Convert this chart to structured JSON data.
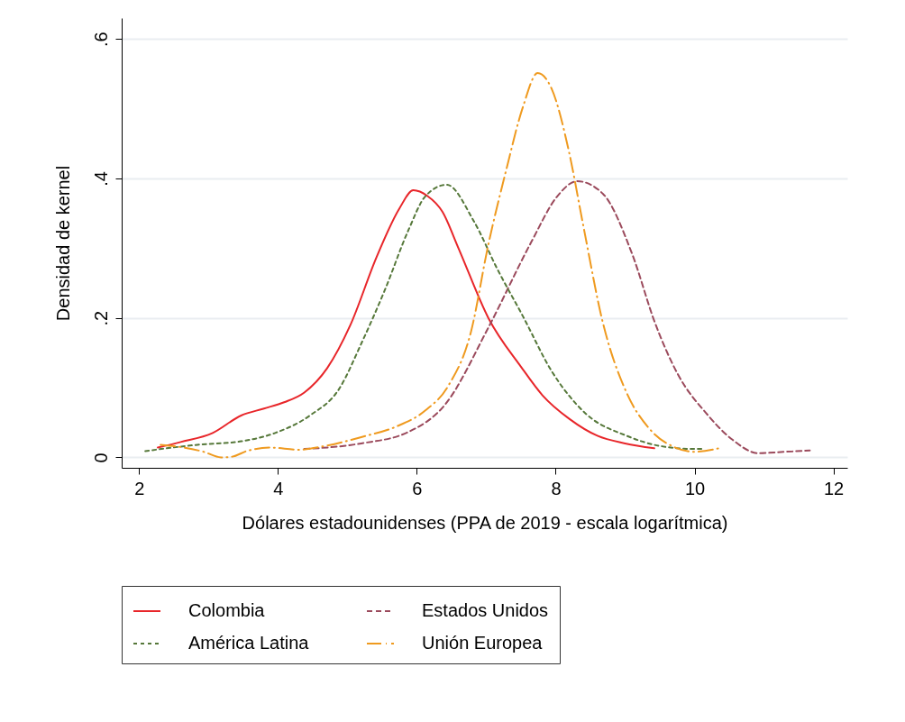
{
  "chart_data": {
    "type": "line",
    "xlabel": "Dólares estadounidenses (PPA de 2019 - escala logarítmica)",
    "ylabel": "Densidad de kernel",
    "xlim": [
      1.75,
      12.2
    ],
    "xticks": [
      2,
      4,
      6,
      8,
      10,
      12
    ],
    "ylim": [
      -0.015,
      0.63
    ],
    "yticks": [
      {
        "value": 0,
        "label": "0"
      },
      {
        "value": 0.2,
        "label": ".2"
      },
      {
        "value": 0.4,
        "label": ".4"
      },
      {
        "value": 0.6,
        "label": ".6"
      }
    ],
    "grid": "y",
    "legend": "bottom",
    "marker": "none",
    "series": [
      {
        "name": "Colombia",
        "color": "#e8262a",
        "line_style": "solid",
        "x": [
          2.27,
          2.6,
          3.06,
          3.47,
          3.8,
          4.09,
          4.38,
          4.71,
          5.04,
          5.42,
          5.75,
          5.95,
          6.15,
          6.37,
          6.6,
          7.03,
          7.5,
          7.81,
          8.2,
          8.6,
          9.0,
          9.42
        ],
        "values": [
          0.014,
          0.022,
          0.035,
          0.06,
          0.07,
          0.079,
          0.093,
          0.128,
          0.189,
          0.287,
          0.357,
          0.383,
          0.375,
          0.352,
          0.3,
          0.2,
          0.13,
          0.089,
          0.055,
          0.031,
          0.02,
          0.013
        ]
      },
      {
        "name": "Estados Unidos",
        "color": "#9b4a5c",
        "line_style": "dashed",
        "x": [
          4.38,
          5.2,
          5.87,
          6.41,
          7.03,
          7.65,
          8.02,
          8.31,
          8.68,
          9.1,
          9.43,
          9.76,
          10.17,
          10.55,
          10.92,
          11.29,
          11.66
        ],
        "values": [
          0.012,
          0.02,
          0.036,
          0.076,
          0.186,
          0.309,
          0.374,
          0.396,
          0.378,
          0.292,
          0.193,
          0.119,
          0.063,
          0.025,
          0.006,
          0.008,
          0.01
        ]
      },
      {
        "name": "América Latina",
        "color": "#56783a",
        "line_style": "dotted",
        "x": [
          2.09,
          2.84,
          3.47,
          3.96,
          4.46,
          4.88,
          5.2,
          5.54,
          5.88,
          6.12,
          6.43,
          6.82,
          7.16,
          7.53,
          7.94,
          8.43,
          9.02,
          9.52,
          10.01,
          10.1
        ],
        "values": [
          0.009,
          0.018,
          0.023,
          0.035,
          0.06,
          0.098,
          0.163,
          0.24,
          0.326,
          0.374,
          0.391,
          0.339,
          0.27,
          0.202,
          0.124,
          0.063,
          0.031,
          0.016,
          0.012,
          0.012
        ]
      },
      {
        "name": "Unión Europea",
        "color": "#ef9a1f",
        "line_style": "dashdot",
        "x": [
          2.31,
          2.65,
          2.93,
          3.18,
          3.34,
          3.55,
          3.89,
          4.3,
          4.71,
          5.2,
          5.7,
          6.12,
          6.45,
          6.78,
          7.03,
          7.28,
          7.53,
          7.74,
          7.94,
          8.19,
          8.4,
          8.68,
          9.02,
          9.35,
          9.68,
          10.01,
          10.35
        ],
        "values": [
          0.018,
          0.014,
          0.008,
          0.0,
          0.001,
          0.009,
          0.014,
          0.011,
          0.017,
          0.029,
          0.044,
          0.067,
          0.102,
          0.18,
          0.305,
          0.409,
          0.503,
          0.551,
          0.529,
          0.439,
          0.331,
          0.193,
          0.093,
          0.041,
          0.016,
          0.008,
          0.013
        ]
      }
    ]
  }
}
